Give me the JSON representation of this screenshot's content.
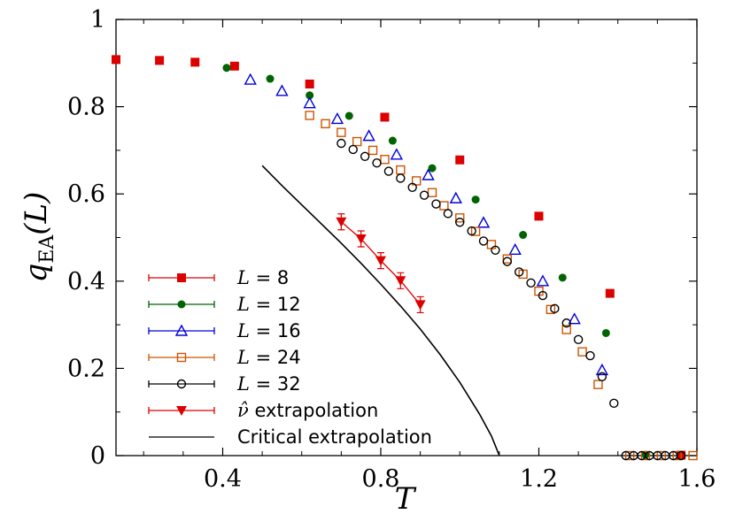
{
  "chart_data": {
    "type": "scatter",
    "xlabel": "T",
    "ylabel_main": "q",
    "ylabel_sub": "EA",
    "ylabel_tail": "(L)",
    "xlim": [
      0.13,
      1.6
    ],
    "ylim": [
      0,
      1
    ],
    "x_ticks": [
      0.4,
      0.8,
      1.2,
      1.6
    ],
    "x_tick_labels": [
      "0.4",
      "0.8",
      "1.2",
      "1.6"
    ],
    "y_ticks": [
      0,
      0.2,
      0.4,
      0.6,
      0.8,
      1
    ],
    "y_tick_labels": [
      "0",
      "0.2",
      "0.4",
      "0.6",
      "0.8",
      "1"
    ],
    "grid": false,
    "legend_position": "bottom-left",
    "series": [
      {
        "name": "L = 8",
        "legend_prefix": "L",
        "legend_value": " = 8",
        "color": "#dd0000",
        "marker": "square-filled",
        "line": false,
        "points": [
          [
            0.13,
            0.908
          ],
          [
            0.24,
            0.906
          ],
          [
            0.33,
            0.902
          ],
          [
            0.43,
            0.893
          ],
          [
            0.62,
            0.852
          ],
          [
            0.81,
            0.776
          ],
          [
            1.0,
            0.678
          ],
          [
            1.2,
            0.549
          ],
          [
            1.38,
            0.372
          ],
          [
            1.56,
            0.001
          ]
        ]
      },
      {
        "name": "L = 12",
        "legend_prefix": "L",
        "legend_value": " = 12",
        "color": "#006400",
        "marker": "circle-filled",
        "line": false,
        "points": [
          [
            0.41,
            0.889
          ],
          [
            0.52,
            0.864
          ],
          [
            0.62,
            0.826
          ],
          [
            0.72,
            0.779
          ],
          [
            0.83,
            0.722
          ],
          [
            0.93,
            0.659
          ],
          [
            1.04,
            0.587
          ],
          [
            1.16,
            0.506
          ],
          [
            1.26,
            0.408
          ],
          [
            1.37,
            0.281
          ],
          [
            1.47,
            0.002
          ]
        ]
      },
      {
        "name": "L = 16",
        "legend_prefix": "L",
        "legend_value": " = 16",
        "color": "#0000dd",
        "marker": "triangle-open",
        "line": false,
        "points": [
          [
            0.47,
            0.862
          ],
          [
            0.55,
            0.836
          ],
          [
            0.62,
            0.808
          ],
          [
            0.69,
            0.772
          ],
          [
            0.77,
            0.733
          ],
          [
            0.84,
            0.69
          ],
          [
            0.92,
            0.643
          ],
          [
            0.99,
            0.59
          ],
          [
            1.06,
            0.534
          ],
          [
            1.14,
            0.472
          ],
          [
            1.21,
            0.4
          ],
          [
            1.29,
            0.313
          ],
          [
            1.36,
            0.196
          ]
        ]
      },
      {
        "name": "L = 24",
        "legend_prefix": "L",
        "legend_value": " = 24",
        "color": "#cc5500",
        "marker": "square-open",
        "line": false,
        "points": [
          [
            0.62,
            0.78
          ],
          [
            0.66,
            0.761
          ],
          [
            0.7,
            0.741
          ],
          [
            0.74,
            0.72
          ],
          [
            0.78,
            0.7
          ],
          [
            0.81,
            0.679
          ],
          [
            0.85,
            0.655
          ],
          [
            0.89,
            0.63
          ],
          [
            0.93,
            0.603
          ],
          [
            0.96,
            0.573
          ],
          [
            1.0,
            0.545
          ],
          [
            1.04,
            0.514
          ],
          [
            1.08,
            0.484
          ],
          [
            1.12,
            0.451
          ],
          [
            1.16,
            0.416
          ],
          [
            1.2,
            0.377
          ],
          [
            1.23,
            0.335
          ],
          [
            1.27,
            0.289
          ],
          [
            1.31,
            0.238
          ],
          [
            1.35,
            0.163
          ],
          [
            1.43,
            0.0
          ],
          [
            1.47,
            0.0
          ],
          [
            1.51,
            0.0
          ],
          [
            1.55,
            0.0
          ],
          [
            1.59,
            0.0
          ]
        ]
      },
      {
        "name": "L = 32",
        "legend_prefix": "L",
        "legend_value": " = 32",
        "color": "#000000",
        "marker": "circle-open",
        "line": false,
        "points": [
          [
            0.7,
            0.716
          ],
          [
            0.73,
            0.702
          ],
          [
            0.76,
            0.686
          ],
          [
            0.79,
            0.671
          ],
          [
            0.82,
            0.652
          ],
          [
            0.85,
            0.636
          ],
          [
            0.88,
            0.615
          ],
          [
            0.91,
            0.597
          ],
          [
            0.94,
            0.577
          ],
          [
            0.97,
            0.555
          ],
          [
            1.0,
            0.535
          ],
          [
            1.03,
            0.515
          ],
          [
            1.06,
            0.492
          ],
          [
            1.09,
            0.471
          ],
          [
            1.12,
            0.445
          ],
          [
            1.15,
            0.421
          ],
          [
            1.18,
            0.396
          ],
          [
            1.21,
            0.367
          ],
          [
            1.24,
            0.337
          ],
          [
            1.27,
            0.304
          ],
          [
            1.3,
            0.266
          ],
          [
            1.33,
            0.229
          ],
          [
            1.36,
            0.181
          ],
          [
            1.39,
            0.12
          ],
          [
            1.42,
            0.0
          ],
          [
            1.44,
            0.0
          ],
          [
            1.46,
            0.0
          ],
          [
            1.48,
            0.0
          ],
          [
            1.5,
            0.0
          ],
          [
            1.52,
            0.0
          ],
          [
            1.54,
            0.0
          ],
          [
            1.56,
            0.0
          ]
        ]
      },
      {
        "name": "ν̂ extrapolation",
        "legend_prefix": "ν̂",
        "legend_value": "  extrapolation",
        "color": "#dd0000",
        "marker": "triangle-down-filled",
        "line": true,
        "points": [
          [
            0.7,
            0.536
          ],
          [
            0.75,
            0.497
          ],
          [
            0.8,
            0.447
          ],
          [
            0.85,
            0.401
          ],
          [
            0.9,
            0.346
          ]
        ]
      },
      {
        "name": "Critical extrapolation",
        "legend_prefix": "",
        "legend_value": "Critical extrapolation",
        "color": "#000000",
        "marker": "none",
        "line": true,
        "points": [
          [
            0.5,
            0.665
          ],
          [
            0.55,
            0.619
          ],
          [
            0.6,
            0.575
          ],
          [
            0.65,
            0.531
          ],
          [
            0.7,
            0.487
          ],
          [
            0.75,
            0.441
          ],
          [
            0.8,
            0.393
          ],
          [
            0.85,
            0.343
          ],
          [
            0.9,
            0.29
          ],
          [
            0.95,
            0.232
          ],
          [
            1.0,
            0.168
          ],
          [
            1.05,
            0.095
          ],
          [
            1.08,
            0.045
          ],
          [
            1.1,
            0.0
          ]
        ]
      }
    ]
  }
}
